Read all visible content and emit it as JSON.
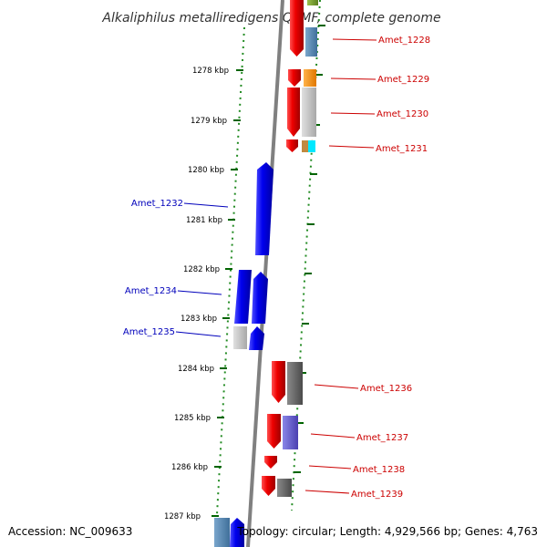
{
  "title": "Alkaliphilus metalliredigens QYMF, complete genome",
  "footer": {
    "accession": "Accession: NC_009633",
    "topology": "Topology: circular; Length: 4,929,566 bp; Genes: 4,763"
  },
  "colors": {
    "forward": "#0000ee",
    "reverse": "#ee0000",
    "backbone": "#808080",
    "tick": "#228b22",
    "label_forward": "#0000bb",
    "label_reverse": "#cc0000"
  },
  "ticks": [
    "1278 kbp",
    "1279 kbp",
    "1280 kbp",
    "1281 kbp",
    "1282 kbp",
    "1283 kbp",
    "1284 kbp",
    "1285 kbp",
    "1286 kbp",
    "1287 kbp"
  ],
  "genes_reverse": [
    "Amet_1228",
    "Amet_1229",
    "Amet_1230",
    "Amet_1231",
    "Amet_1236",
    "Amet_1237",
    "Amet_1238",
    "Amet_1239"
  ],
  "genes_forward": [
    "Amet_1232",
    "Amet_1234",
    "Amet_1235"
  ]
}
